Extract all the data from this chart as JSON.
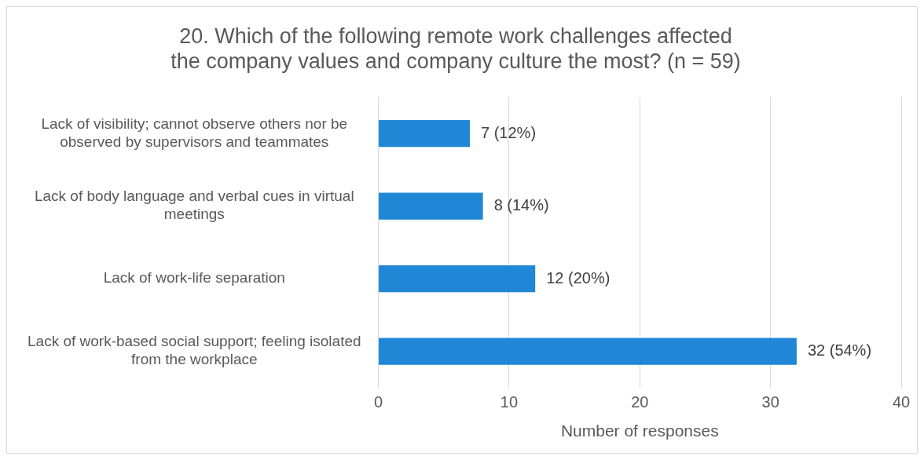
{
  "chart_data": {
    "type": "bar",
    "orientation": "horizontal",
    "title": "20. Which of the following remote work challenges affected the company values and company culture the most? (n = 59)",
    "categories": [
      "Lack of visibility; cannot observe others nor be observed by supervisors and teammates",
      "Lack of body language and verbal cues in virtual meetings",
      "Lack of work-life separation",
      "Lack of work-based social support; feeling isolated from the workplace"
    ],
    "values": [
      7,
      8,
      12,
      32
    ],
    "value_labels": [
      "7 (12%)",
      "8 (14%)",
      "12 (20%)",
      "32 (54%)"
    ],
    "color": "#1f87d6",
    "xlabel": "Number of responses",
    "xlim": [
      0,
      40
    ],
    "xticks": [
      0,
      10,
      20,
      30,
      40
    ],
    "grid": "x",
    "legend": false
  }
}
